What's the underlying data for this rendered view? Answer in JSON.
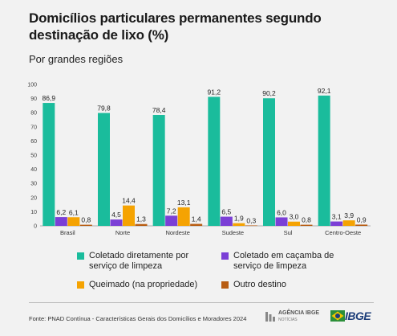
{
  "title": "Domicílios particulares permanentes segundo destinação de lixo (%)",
  "subtitle": "Por grandes regiões",
  "source": "Fonte: PNAD Contínua - Características Gerais dos Domicílios e Moradores 2024",
  "logos": {
    "agencia_line1": "AGÊNCIA IBGE",
    "agencia_line2": "NOTÍCIAS",
    "ibge": "IBGE"
  },
  "chart_data": {
    "type": "bar",
    "categories": [
      "Brasil",
      "Norte",
      "Nordeste",
      "Sudeste",
      "Sul",
      "Centro-Oeste"
    ],
    "series": [
      {
        "name": "Coletado diretamente por serviço de limpeza",
        "color": "#1abc9c",
        "values": [
          86.9,
          79.8,
          78.4,
          91.2,
          90.2,
          92.1
        ]
      },
      {
        "name": "Coletado em caçamba de serviço de limpeza",
        "color": "#7b3fd6",
        "values": [
          6.2,
          4.5,
          7.2,
          6.5,
          6.0,
          3.1
        ]
      },
      {
        "name": "Queimado (na propriedade)",
        "color": "#f5a302",
        "values": [
          6.1,
          14.4,
          13.1,
          1.9,
          3.0,
          3.9
        ]
      },
      {
        "name": "Outro destino",
        "color": "#b85c12",
        "values": [
          0.8,
          1.3,
          1.4,
          0.3,
          0.8,
          0.9
        ]
      }
    ],
    "ylim": [
      0,
      100
    ],
    "yticks": [
      0,
      10,
      20,
      30,
      40,
      50,
      60,
      70,
      80,
      90,
      100
    ],
    "grid": false,
    "legend_position": "bottom"
  }
}
